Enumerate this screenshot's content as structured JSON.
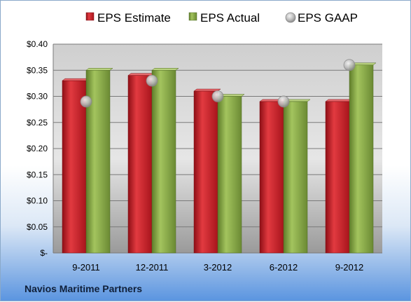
{
  "company": "Navios Maritime Partners",
  "colors": {
    "estimate": "#c8202a",
    "actual": "#8aab4a",
    "gaap": "#b8b8b8"
  },
  "chart_data": {
    "type": "bar",
    "categories": [
      "9-2011",
      "12-2011",
      "3-2012",
      "6-2012",
      "9-2012"
    ],
    "series": [
      {
        "name": "EPS Estimate",
        "type": "bar",
        "values": [
          0.33,
          0.34,
          0.31,
          0.29,
          0.29
        ]
      },
      {
        "name": "EPS Actual",
        "type": "bar",
        "values": [
          0.35,
          0.35,
          0.3,
          0.29,
          0.36
        ]
      },
      {
        "name": "EPS GAAP",
        "type": "scatter",
        "values": [
          0.29,
          0.33,
          0.3,
          0.29,
          0.36
        ]
      }
    ],
    "ylim": [
      0,
      0.4
    ],
    "yticks": [
      0,
      0.05,
      0.1,
      0.15,
      0.2,
      0.25,
      0.3,
      0.35,
      0.4
    ],
    "ytick_labels": [
      "$-",
      "$0.05",
      "$0.10",
      "$0.15",
      "$0.20",
      "$0.25",
      "$0.30",
      "$0.35",
      "$0.40"
    ],
    "title": "",
    "xlabel": "",
    "ylabel": "",
    "grid": true,
    "legend_position": "top"
  }
}
